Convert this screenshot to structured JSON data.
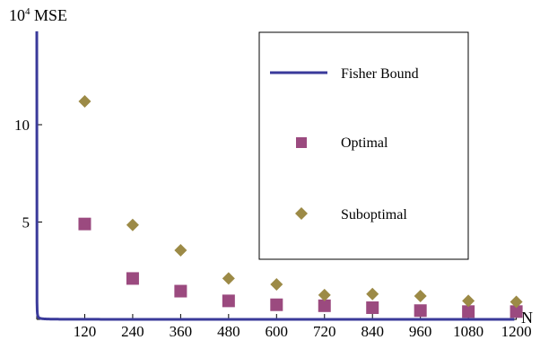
{
  "chart_data": {
    "type": "scatter",
    "ylabel_base": "10",
    "ylabel_exp": "4",
    "ylabel_text": " MSE",
    "xlabel": "N",
    "xlim": [
      0,
      1220
    ],
    "ylim": [
      0,
      14.8
    ],
    "xticks": [
      120,
      240,
      360,
      480,
      600,
      720,
      840,
      960,
      1080,
      1200
    ],
    "yticks": [
      5,
      10
    ],
    "series": [
      {
        "name": "Fisher Bound",
        "kind": "line",
        "color": "#3a3a9a",
        "formula_const": 0.4685
      },
      {
        "name": "Optimal",
        "kind": "square",
        "color": "#9b4a7f",
        "x": [
          120,
          240,
          360,
          480,
          600,
          720,
          840,
          960,
          1080,
          1200
        ],
        "y": [
          4.9,
          2.1,
          1.45,
          0.95,
          0.75,
          0.7,
          0.6,
          0.45,
          0.4,
          0.4
        ]
      },
      {
        "name": "Suboptimal",
        "kind": "diamond",
        "color": "#9c8a46",
        "x": [
          120,
          240,
          360,
          480,
          600,
          720,
          840,
          960,
          1080,
          1200
        ],
        "y": [
          11.2,
          4.85,
          3.55,
          2.1,
          1.8,
          1.25,
          1.3,
          1.2,
          0.95,
          0.9
        ]
      }
    ],
    "legend": {
      "placement": "top-right",
      "entries": [
        "Fisher Bound",
        "Optimal",
        "Suboptimal"
      ]
    }
  }
}
